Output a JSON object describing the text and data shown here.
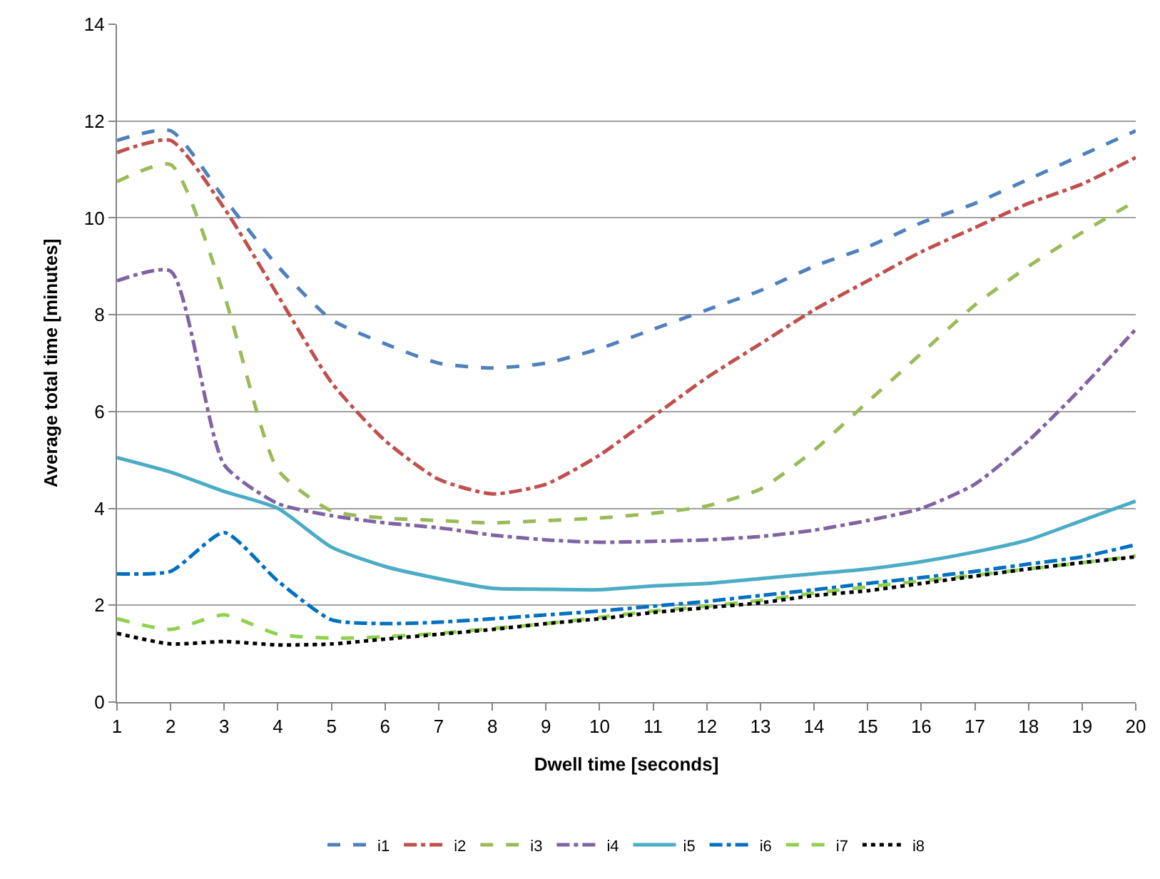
{
  "chart_data": {
    "type": "line",
    "xlabel": "Dwell time [seconds]",
    "ylabel": "Average total time [minutes]",
    "x": [
      1,
      2,
      3,
      4,
      5,
      6,
      7,
      8,
      9,
      10,
      11,
      12,
      13,
      14,
      15,
      16,
      17,
      18,
      19,
      20
    ],
    "xlim": [
      1,
      20
    ],
    "xticks": [
      1,
      2,
      3,
      4,
      5,
      6,
      7,
      8,
      9,
      10,
      11,
      12,
      13,
      14,
      15,
      16,
      17,
      18,
      19,
      20
    ],
    "ylim": [
      0,
      14
    ],
    "yticks": [
      0,
      2,
      4,
      6,
      8,
      10,
      12,
      14
    ],
    "grid": "y",
    "legend": "bottom",
    "marker": "none",
    "series": [
      {
        "name": "i1",
        "color": "#4f81bd",
        "line_style": "dashed",
        "values": [
          11.6,
          11.8,
          10.4,
          9.0,
          7.9,
          7.4,
          7.0,
          6.9,
          7.0,
          7.3,
          7.7,
          8.1,
          8.5,
          9.0,
          9.4,
          9.9,
          10.3,
          10.8,
          11.3,
          11.8
        ]
      },
      {
        "name": "i2",
        "color": "#c0504d",
        "line_style": "dashdot",
        "values": [
          11.35,
          11.6,
          10.2,
          8.4,
          6.6,
          5.4,
          4.6,
          4.3,
          4.5,
          5.1,
          5.9,
          6.7,
          7.4,
          8.1,
          8.7,
          9.3,
          9.8,
          10.3,
          10.7,
          11.25
        ]
      },
      {
        "name": "i3",
        "color": "#9bbb59",
        "line_style": "dashed",
        "values": [
          10.75,
          11.1,
          8.4,
          4.8,
          3.95,
          3.8,
          3.75,
          3.7,
          3.75,
          3.8,
          3.9,
          4.05,
          4.4,
          5.2,
          6.2,
          7.2,
          8.2,
          9.0,
          9.7,
          10.35
        ]
      },
      {
        "name": "i4",
        "color": "#8064a2",
        "line_style": "dashdot",
        "values": [
          8.7,
          8.9,
          4.9,
          4.1,
          3.85,
          3.7,
          3.6,
          3.45,
          3.35,
          3.3,
          3.32,
          3.35,
          3.42,
          3.55,
          3.75,
          4.0,
          4.5,
          5.4,
          6.5,
          7.7
        ]
      },
      {
        "name": "i5",
        "color": "#4bacc6",
        "line_style": "solid",
        "values": [
          5.05,
          4.75,
          4.35,
          4.0,
          3.2,
          2.8,
          2.55,
          2.35,
          2.33,
          2.32,
          2.4,
          2.45,
          2.55,
          2.65,
          2.75,
          2.9,
          3.1,
          3.35,
          3.75,
          4.15
        ]
      },
      {
        "name": "i6",
        "color": "#0070c0",
        "line_style": "dashdot",
        "values": [
          2.65,
          2.7,
          3.5,
          2.5,
          1.7,
          1.62,
          1.65,
          1.72,
          1.8,
          1.88,
          1.98,
          2.08,
          2.2,
          2.32,
          2.45,
          2.57,
          2.7,
          2.85,
          3.0,
          3.25
        ]
      },
      {
        "name": "i7",
        "color": "#92d050",
        "line_style": "dashed",
        "values": [
          1.72,
          1.5,
          1.8,
          1.4,
          1.32,
          1.35,
          1.42,
          1.52,
          1.62,
          1.75,
          1.88,
          1.98,
          2.1,
          2.25,
          2.38,
          2.5,
          2.62,
          2.75,
          2.88,
          3.02
        ]
      },
      {
        "name": "i8",
        "color": "#000000",
        "line_style": "dotted",
        "values": [
          1.42,
          1.2,
          1.25,
          1.18,
          1.2,
          1.3,
          1.4,
          1.5,
          1.62,
          1.72,
          1.85,
          1.95,
          2.05,
          2.2,
          2.3,
          2.45,
          2.6,
          2.75,
          2.88,
          3.0
        ]
      }
    ]
  }
}
